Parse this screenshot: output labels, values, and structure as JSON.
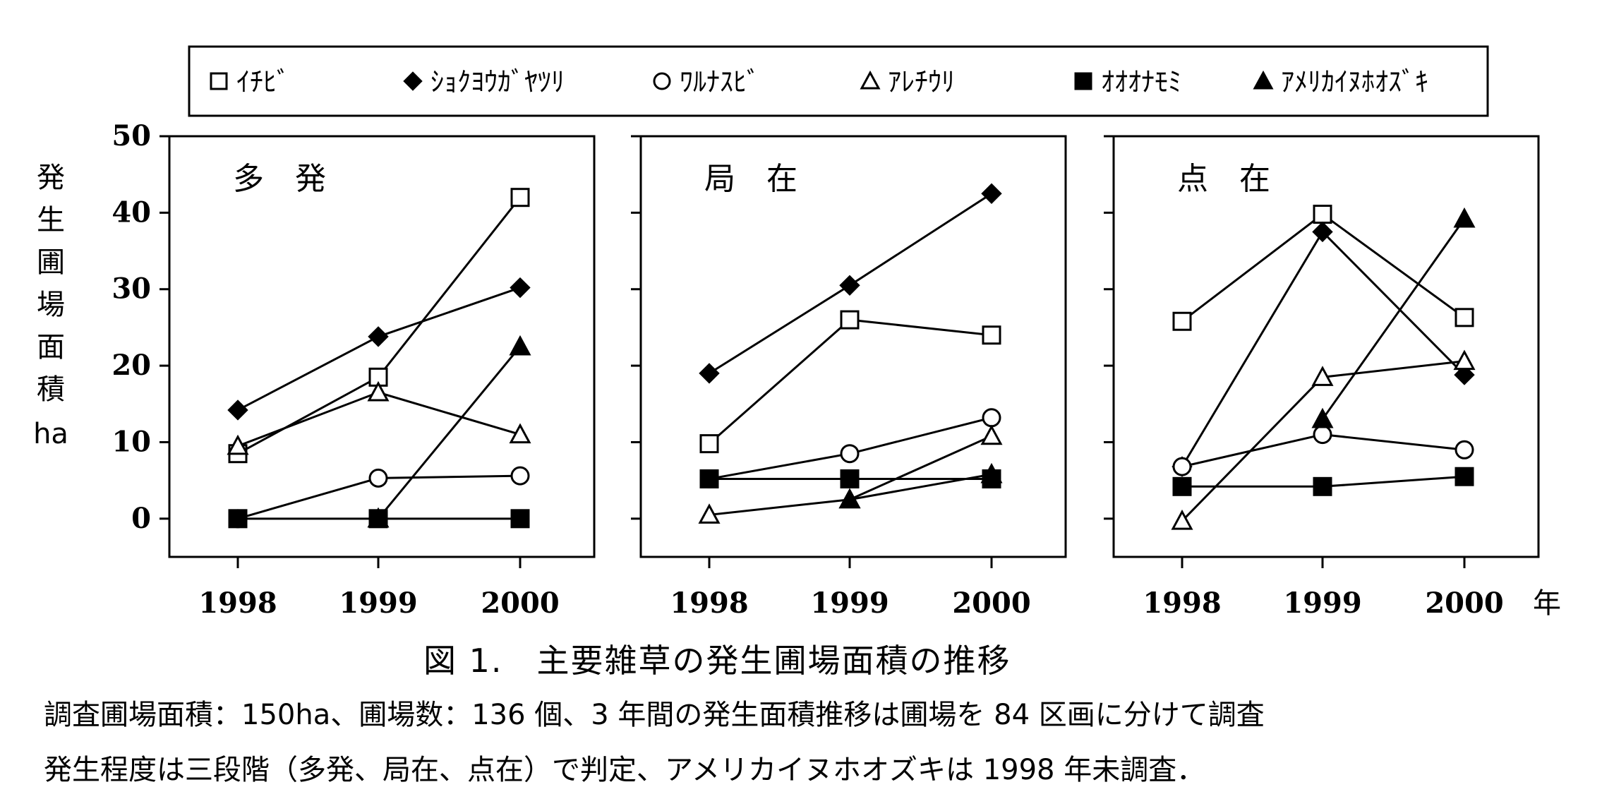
{
  "chart_data": {
    "type": "line",
    "y_axis_label": [
      "発",
      "生",
      "圃",
      "場",
      "面",
      "積",
      "ha"
    ],
    "x_unit": "年",
    "ylim": [
      -5,
      50
    ],
    "yticks": [
      0,
      10,
      20,
      30,
      40,
      50
    ],
    "x": [
      "1998",
      "1999",
      "2000"
    ],
    "legend": [
      {
        "key": "ichibi",
        "label": "ｲﾁﾋﾞ",
        "marker": "square-open"
      },
      {
        "key": "shokuyougayatsuri",
        "label": "ｼｮｸﾖｳｶﾞﾔﾂﾘ",
        "marker": "diamond-filled"
      },
      {
        "key": "warunasubi",
        "label": "ﾜﾙﾅｽﾋﾞ",
        "marker": "circle-open"
      },
      {
        "key": "arechiuri",
        "label": "ｱﾚﾁｳﾘ",
        "marker": "triangle-open"
      },
      {
        "key": "ooonamomi",
        "label": "ｵｵｵﾅﾓﾐ",
        "marker": "square-filled"
      },
      {
        "key": "amerikainuhoozuki",
        "label": "ｱﾒﾘｶｲﾇﾎｵｽﾞｷ",
        "marker": "triangle-filled"
      }
    ],
    "panels": [
      {
        "title": "多　発",
        "series": [
          {
            "key": "ichibi",
            "values": [
              8.5,
              18.5,
              42
            ]
          },
          {
            "key": "shokuyougayatsuri",
            "values": [
              14.2,
              23.8,
              30.2
            ]
          },
          {
            "key": "warunasubi",
            "values": [
              0,
              5.3,
              5.6
            ]
          },
          {
            "key": "arechiuri",
            "values": [
              9.5,
              16.5,
              11
            ]
          },
          {
            "key": "ooonamomi",
            "values": [
              0,
              0,
              0
            ]
          },
          {
            "key": "amerikainuhoozuki",
            "values": [
              null,
              0,
              22.5
            ]
          }
        ]
      },
      {
        "title": "局　在",
        "series": [
          {
            "key": "ichibi",
            "values": [
              9.8,
              26,
              24
            ]
          },
          {
            "key": "shokuyougayatsuri",
            "values": [
              19,
              30.5,
              42.5
            ]
          },
          {
            "key": "warunasubi",
            "values": [
              5.2,
              8.5,
              13.2
            ]
          },
          {
            "key": "arechiuri",
            "values": [
              0.5,
              2.5,
              10.8
            ]
          },
          {
            "key": "ooonamomi",
            "values": [
              5.2,
              5.2,
              5.2
            ]
          },
          {
            "key": "amerikainuhoozuki",
            "values": [
              null,
              2.5,
              5.8
            ]
          }
        ]
      },
      {
        "title": "点　在",
        "series": [
          {
            "key": "ichibi",
            "values": [
              25.8,
              39.8,
              26.3
            ]
          },
          {
            "key": "shokuyougayatsuri",
            "values": [
              6.8,
              37.5,
              18.8
            ]
          },
          {
            "key": "warunasubi",
            "values": [
              6.8,
              11,
              9
            ]
          },
          {
            "key": "arechiuri",
            "values": [
              -0.3,
              18.5,
              20.6
            ]
          },
          {
            "key": "ooonamomi",
            "values": [
              4.2,
              4.2,
              5.5
            ]
          },
          {
            "key": "amerikainuhoozuki",
            "values": [
              null,
              13,
              39.2
            ]
          }
        ]
      }
    ]
  },
  "caption": {
    "title": "図 1.　主要雑草の発生圃場面積の推移",
    "note1": "調査圃場面積：150ha、圃場数：136 個、3 年間の発生面積推移は圃場を 84 区画に分けて調査",
    "note2": "発生程度は三段階（多発、局在、点在）で判定、アメリカイヌホオズキは 1998 年未調査．"
  }
}
